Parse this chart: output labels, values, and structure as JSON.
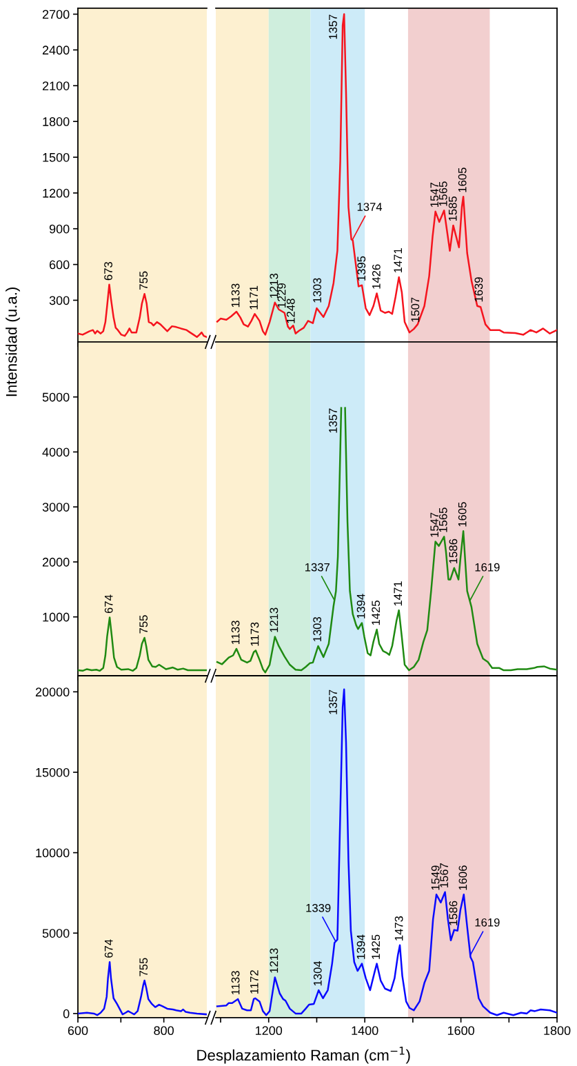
{
  "chart_data": [
    {
      "type": "line",
      "xlim": [
        600,
        900
      ],
      "xticks": [
        600,
        {
          "value": 700,
          "label": null
        },
        800
      ],
      "ylim": [
        -50,
        2750
      ],
      "yticks": [
        300,
        600,
        900,
        1200,
        1500,
        1800,
        2100,
        2400,
        2700
      ],
      "tick_labels": "y",
      "bands": [
        {
          "axis": "x",
          "from": 600,
          "to": 900,
          "color": "#fdf0d0"
        }
      ],
      "series": [
        {
          "color": "#f5141e",
          "x": [
            600,
            611,
            627,
            635,
            640,
            645,
            653,
            659,
            664,
            668,
            673,
            677,
            683,
            688,
            693,
            701,
            709,
            715,
            720,
            725,
            736,
            744,
            749,
            755,
            760,
            765,
            771,
            776,
            784,
            792,
            800,
            808,
            819,
            829,
            840,
            853,
            861,
            869,
            877,
            883,
            888,
            893,
            899
          ],
          "values": [
            21,
            11,
            40,
            50,
            21,
            44,
            21,
            40,
            117,
            252,
            432,
            310,
            156,
            69,
            50,
            11,
            1,
            30,
            63,
            30,
            30,
            156,
            272,
            353,
            272,
            117,
            108,
            88,
            117,
            98,
            69,
            40,
            82,
            75,
            63,
            50,
            30,
            11,
            -8,
            11,
            30,
            1,
            -8
          ]
        }
      ],
      "annotations": [
        {
          "text": "673",
          "x": 673,
          "y": 432
        },
        {
          "text": "755",
          "x": 755,
          "y": 353
        }
      ]
    },
    {
      "type": "line",
      "xlim": [
        1090,
        1800
      ],
      "xticks": [
        {
          "value": 1100,
          "label": null
        },
        1200,
        {
          "value": 1300,
          "label": null
        },
        1400,
        {
          "value": 1500,
          "label": null
        },
        1600,
        {
          "value": 1700,
          "label": null
        },
        1800
      ],
      "ylim": [
        -50,
        2750
      ],
      "tick_labels": false,
      "bands": [
        {
          "axis": "x",
          "from": 1090,
          "to": 1200,
          "color": "#fdf0d0"
        },
        {
          "axis": "x",
          "from": 1200,
          "to": 1287,
          "color": "#cfeedd"
        },
        {
          "axis": "x",
          "from": 1287,
          "to": 1400,
          "color": "#cdebf8"
        },
        {
          "axis": "x",
          "from": 1490,
          "to": 1660,
          "color": "#f2cfcf"
        }
      ],
      "series": [
        {
          "color": "#f5141e",
          "x": [
            1093,
            1100,
            1112,
            1122,
            1133,
            1141,
            1148,
            1157,
            1164,
            1171,
            1181,
            1188,
            1193,
            1202,
            1213,
            1221,
            1233,
            1240,
            1244,
            1251,
            1256,
            1263,
            1273,
            1282,
            1292,
            1300,
            1314,
            1325,
            1335,
            1343,
            1349,
            1354,
            1357,
            1361,
            1366,
            1372,
            1375,
            1382,
            1387,
            1394,
            1402,
            1410,
            1418,
            1425,
            1433,
            1442,
            1450,
            1457,
            1464,
            1471,
            1477,
            1483,
            1493,
            1502,
            1510,
            1524,
            1534,
            1541,
            1547,
            1555,
            1565,
            1577,
            1584,
            1596,
            1602,
            1605,
            1613,
            1622,
            1634,
            1641,
            1651,
            1661,
            1680,
            1689,
            1713,
            1730,
            1745,
            1757,
            1771,
            1785,
            1800
          ],
          "values": [
            121,
            146,
            136,
            165,
            204,
            156,
            98,
            79,
            127,
            185,
            127,
            40,
            11,
            117,
            281,
            223,
            194,
            79,
            59,
            88,
            21,
            44,
            69,
            127,
            108,
            233,
            160,
            252,
            445,
            715,
            1468,
            2607,
            2700,
            2047,
            1082,
            812,
            802,
            580,
            416,
            426,
            233,
            175,
            252,
            358,
            214,
            194,
            204,
            185,
            329,
            494,
            368,
            117,
            30,
            59,
            98,
            252,
            503,
            831,
            1044,
            957,
            1053,
            715,
            928,
            744,
            1082,
            1169,
            696,
            464,
            252,
            243,
            98,
            50,
            50,
            30,
            25,
            11,
            50,
            30,
            63,
            21,
            50
          ]
        }
      ],
      "annotations": [
        {
          "text": "1133",
          "x": 1133,
          "y": 204
        },
        {
          "text": "1171",
          "x": 1171,
          "y": 185
        },
        {
          "text": "1213",
          "x": 1213,
          "y": 281
        },
        {
          "text": "1229",
          "x": 1229,
          "y": 200
        },
        {
          "text": "1248",
          "x": 1248,
          "y": 70
        },
        {
          "text": "1303",
          "x": 1303,
          "y": 243
        },
        {
          "text": "1357",
          "x": 1357,
          "y": 2700
        },
        {
          "text": "1374",
          "x": 1374,
          "y": 805
        },
        {
          "text": "1395",
          "x": 1395,
          "y": 426
        },
        {
          "text": "1426",
          "x": 1426,
          "y": 358
        },
        {
          "text": "1471",
          "x": 1471,
          "y": 494
        },
        {
          "text": "1507",
          "x": 1507,
          "y": 80
        },
        {
          "text": "1547",
          "x": 1547,
          "y": 1044
        },
        {
          "text": "1565",
          "x": 1565,
          "y": 1053
        },
        {
          "text": "1585",
          "x": 1585,
          "y": 928
        },
        {
          "text": "1605",
          "x": 1605,
          "y": 1169
        },
        {
          "text": "1639",
          "x": 1639,
          "y": 250
        }
      ]
    },
    {
      "type": "line",
      "xlim": [
        600,
        900
      ],
      "xticks": [
        600,
        {
          "value": 700,
          "label": null
        },
        800
      ],
      "ylim": [
        -70,
        6000
      ],
      "yticks": [
        1000,
        2000,
        3000,
        4000,
        5000
      ],
      "tick_labels": "y",
      "ylabel": "Intensidad (u.a.)",
      "bands": [
        {
          "axis": "x",
          "from": 600,
          "to": 900,
          "color": "#fdf0d0"
        }
      ],
      "series": [
        {
          "color": "#1f8a12",
          "x": [
            600,
            611,
            621,
            632,
            643,
            651,
            659,
            664,
            668,
            674,
            679,
            684,
            691,
            701,
            717,
            728,
            736,
            744,
            749,
            755,
            759,
            764,
            773,
            781,
            789,
            797,
            805,
            821,
            832,
            845,
            856,
            877,
            899
          ],
          "values": [
            30,
            20,
            50,
            30,
            40,
            20,
            70,
            300,
            640,
            990,
            640,
            260,
            90,
            40,
            50,
            20,
            70,
            300,
            510,
            620,
            470,
            220,
            100,
            90,
            130,
            90,
            50,
            80,
            40,
            60,
            30,
            30,
            30
          ]
        }
      ],
      "annotations": [
        {
          "text": "674",
          "x": 674,
          "y": 990
        },
        {
          "text": "755",
          "x": 755,
          "y": 620
        }
      ]
    },
    {
      "type": "line",
      "xlim": [
        1090,
        1800
      ],
      "xticks": [
        {
          "value": 1100,
          "label": null
        },
        1200,
        {
          "value": 1300,
          "label": null
        },
        1400,
        {
          "value": 1500,
          "label": null
        },
        1600,
        {
          "value": 1700,
          "label": null
        },
        1800
      ],
      "ylim": [
        -70,
        6000
      ],
      "tick_labels": false,
      "bands": [
        {
          "axis": "x",
          "from": 1090,
          "to": 1200,
          "color": "#fdf0d0"
        },
        {
          "axis": "x",
          "from": 1200,
          "to": 1287,
          "color": "#cfeedd"
        },
        {
          "axis": "x",
          "from": 1287,
          "to": 1400,
          "color": "#cdebf8"
        },
        {
          "axis": "x",
          "from": 1490,
          "to": 1660,
          "color": "#f2cfcf"
        }
      ],
      "series": [
        {
          "color": "#1f8a12",
          "x": [
            1093,
            1103,
            1117,
            1126,
            1133,
            1143,
            1155,
            1162,
            1169,
            1173,
            1181,
            1188,
            1193,
            1202,
            1213,
            1221,
            1233,
            1244,
            1256,
            1268,
            1277,
            1286,
            1292,
            1303,
            1314,
            1325,
            1335,
            1340,
            1344,
            1351,
            1355,
            1359,
            1364,
            1369,
            1375,
            1382,
            1386,
            1394,
            1399,
            1406,
            1412,
            1418,
            1425,
            1430,
            1438,
            1445,
            1451,
            1457,
            1466,
            1471,
            1477,
            1483,
            1492,
            1502,
            1512,
            1522,
            1530,
            1538,
            1547,
            1554,
            1565,
            1569,
            1574,
            1578,
            1586,
            1595,
            1599,
            1605,
            1613,
            1622,
            1634,
            1646,
            1656,
            1665,
            1680,
            1689,
            1704,
            1718,
            1737,
            1752,
            1759,
            1773,
            1785,
            1800
          ],
          "values": [
            180,
            140,
            260,
            300,
            420,
            220,
            170,
            200,
            360,
            390,
            220,
            50,
            -10,
            130,
            640,
            470,
            280,
            130,
            40,
            30,
            90,
            160,
            170,
            470,
            270,
            510,
            1200,
            1470,
            2100,
            4800,
            null,
            4800,
            2730,
            1470,
            1050,
            850,
            780,
            890,
            640,
            340,
            300,
            550,
            770,
            510,
            380,
            350,
            310,
            470,
            930,
            1120,
            640,
            130,
            30,
            90,
            220,
            550,
            760,
            1470,
            2370,
            2290,
            2460,
            2180,
            1680,
            1680,
            1890,
            1680,
            2060,
            2560,
            1470,
            1180,
            510,
            240,
            180,
            70,
            70,
            30,
            30,
            50,
            50,
            70,
            90,
            100,
            60,
            40
          ]
        }
      ],
      "annotations": [
        {
          "text": "1133",
          "x": 1133,
          "y": 420
        },
        {
          "text": "1173",
          "x": 1173,
          "y": 390
        },
        {
          "text": "1213",
          "x": 1213,
          "y": 640
        },
        {
          "text": "1303",
          "x": 1303,
          "y": 470
        },
        {
          "text": "1337",
          "x": 1337,
          "y": 1300
        },
        {
          "text": "1357",
          "x": 1357,
          "y": 4800
        },
        {
          "text": "1394",
          "x": 1394,
          "y": 890
        },
        {
          "text": "1425",
          "x": 1425,
          "y": 770
        },
        {
          "text": "1471",
          "x": 1471,
          "y": 1120
        },
        {
          "text": "1547",
          "x": 1547,
          "y": 2370
        },
        {
          "text": "1565",
          "x": 1565,
          "y": 2460
        },
        {
          "text": "1586",
          "x": 1586,
          "y": 1890
        },
        {
          "text": "1605",
          "x": 1605,
          "y": 2560
        },
        {
          "text": "1619",
          "x": 1619,
          "y": 1300
        }
      ]
    },
    {
      "type": "line",
      "xlim": [
        600,
        900
      ],
      "xticks": [
        600,
        {
          "value": 700,
          "label": null
        },
        800
      ],
      "ylim": [
        -260,
        21000
      ],
      "yticks": [
        0,
        5000,
        10000,
        15000,
        20000
      ],
      "bands": [
        {
          "axis": "x",
          "from": 600,
          "to": 900,
          "color": "#fdf0d0"
        }
      ],
      "series": [
        {
          "color": "#0a0aff",
          "x": [
            600,
            621,
            637,
            645,
            653,
            661,
            667,
            670,
            674,
            677,
            683,
            691,
            697,
            704,
            711,
            717,
            724,
            731,
            739,
            747,
            752,
            755,
            759,
            764,
            772,
            780,
            789,
            797,
            808,
            821,
            829,
            840,
            845,
            851,
            861,
            877,
            899
          ],
          "values": [
            0,
            50,
            0,
            -100,
            50,
            300,
            1050,
            2200,
            3200,
            2200,
            950,
            600,
            300,
            -50,
            50,
            150,
            50,
            -50,
            150,
            1050,
            1750,
            2050,
            1600,
            900,
            600,
            400,
            550,
            450,
            300,
            250,
            200,
            150,
            250,
            100,
            50,
            0,
            -50
          ]
        }
      ],
      "annotations": [
        {
          "text": "674",
          "x": 674,
          "y": 3200
        },
        {
          "text": "755",
          "x": 755,
          "y": 2050
        }
      ]
    },
    {
      "type": "line",
      "xlim": [
        1090,
        1800
      ],
      "xticks": [
        {
          "value": 1100,
          "label": null
        },
        1200,
        {
          "value": 1300,
          "label": null
        },
        1400,
        {
          "value": 1500,
          "label": null
        },
        1600,
        {
          "value": 1700,
          "label": null
        },
        1800
      ],
      "ylim": [
        -260,
        21000
      ],
      "tick_labels": "x",
      "xlabel": "Desplazamiento Raman (cm$^{−1}$)",
      "bands": [
        {
          "axis": "x",
          "from": 1090,
          "to": 1200,
          "color": "#fdf0d0"
        },
        {
          "axis": "x",
          "from": 1200,
          "to": 1287,
          "color": "#cfeedd"
        },
        {
          "axis": "x",
          "from": 1287,
          "to": 1400,
          "color": "#cdebf8"
        },
        {
          "axis": "x",
          "from": 1490,
          "to": 1660,
          "color": "#f2cfcf"
        }
      ],
      "series": [
        {
          "color": "#0a0aff",
          "x": [
            1093,
            1112,
            1117,
            1124,
            1136,
            1145,
            1155,
            1163,
            1169,
            1172,
            1181,
            1188,
            1195,
            1202,
            1213,
            1223,
            1230,
            1235,
            1244,
            1256,
            1268,
            1277,
            1284,
            1294,
            1304,
            1313,
            1323,
            1332,
            1337,
            1343,
            1349,
            1354,
            1357,
            1361,
            1366,
            1371,
            1378,
            1385,
            1394,
            1402,
            1411,
            1421,
            1425,
            1433,
            1442,
            1454,
            1462,
            1469,
            1473,
            1478,
            1486,
            1493,
            1502,
            1514,
            1524,
            1534,
            1542,
            1549,
            1558,
            1567,
            1573,
            1579,
            1586,
            1593,
            1599,
            1606,
            1613,
            1620,
            1625,
            1637,
            1646,
            1661,
            1675,
            1689,
            1709,
            1725,
            1737,
            1745,
            1754,
            1766,
            1785,
            1800
          ],
          "values": [
            450,
            500,
            650,
            650,
            900,
            300,
            200,
            200,
            900,
            950,
            750,
            150,
            -100,
            150,
            2250,
            1250,
            900,
            800,
            300,
            0,
            0,
            300,
            550,
            600,
            1450,
            950,
            1450,
            3100,
            4400,
            4600,
            12450,
            19050,
            20150,
            16850,
            9500,
            5150,
            3200,
            2650,
            3100,
            2200,
            1450,
            2650,
            3100,
            2050,
            1550,
            1400,
            2200,
            3650,
            4250,
            2350,
            750,
            350,
            200,
            750,
            1900,
            2650,
            5850,
            7400,
            6900,
            7550,
            5850,
            4550,
            5200,
            5150,
            6450,
            7400,
            5400,
            3500,
            3200,
            950,
            450,
            50,
            -100,
            50,
            -100,
            50,
            0,
            200,
            150,
            250,
            200,
            50
          ]
        }
      ],
      "annotations": [
        {
          "text": "1133",
          "x": 1133,
          "y": 900
        },
        {
          "text": "1172",
          "x": 1172,
          "y": 950
        },
        {
          "text": "1213",
          "x": 1213,
          "y": 2250
        },
        {
          "text": "1304",
          "x": 1304,
          "y": 1450
        },
        {
          "text": "1339",
          "x": 1339,
          "y": 4500
        },
        {
          "text": "1357",
          "x": 1357,
          "y": 20150
        },
        {
          "text": "1394",
          "x": 1394,
          "y": 3100
        },
        {
          "text": "1425",
          "x": 1425,
          "y": 3100
        },
        {
          "text": "1473",
          "x": 1473,
          "y": 4250
        },
        {
          "text": "1549",
          "x": 1549,
          "y": 7400
        },
        {
          "text": "1567",
          "x": 1567,
          "y": 7550
        },
        {
          "text": "1586",
          "x": 1586,
          "y": 5200
        },
        {
          "text": "1606",
          "x": 1606,
          "y": 7400
        },
        {
          "text": "1619",
          "x": 1619,
          "y": 3600
        }
      ]
    }
  ]
}
